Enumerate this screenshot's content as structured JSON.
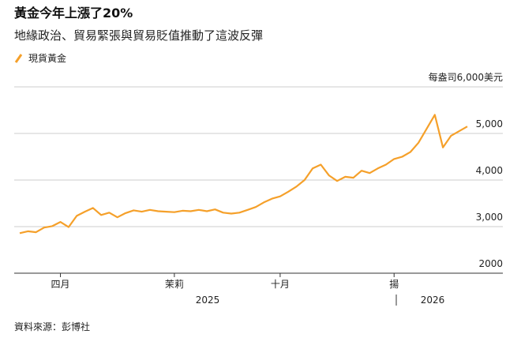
{
  "chart_data": {
    "type": "line",
    "title": "黃金今年上漲了20%",
    "subtitle": "地緣政治、貿易緊張與貿易貶值推動了這波反彈",
    "source": "資料來源：彭博社",
    "categories": [
      null,
      null,
      null,
      null,
      null,
      "四月",
      null,
      null,
      null,
      null,
      null,
      null,
      null,
      null,
      null,
      null,
      null,
      null,
      null,
      "茉莉",
      null,
      null,
      null,
      null,
      null,
      null,
      null,
      null,
      null,
      null,
      null,
      null,
      "十月",
      null,
      null,
      null,
      null,
      null,
      null,
      null,
      null,
      null,
      null,
      null,
      null,
      null,
      "揚",
      null,
      null,
      null,
      null,
      null,
      null,
      null,
      null,
      null
    ],
    "year_labels": [
      "2025",
      "2026"
    ],
    "series": [
      {
        "name": "現貨黃金",
        "color": "#f5a02a",
        "values": [
          2860,
          2900,
          2880,
          2980,
          3010,
          3100,
          2990,
          3230,
          3320,
          3400,
          3250,
          3300,
          3200,
          3290,
          3350,
          3320,
          3360,
          3330,
          3320,
          3310,
          3340,
          3330,
          3360,
          3330,
          3370,
          3300,
          3280,
          3300,
          3360,
          3420,
          3520,
          3600,
          3650,
          3750,
          3860,
          4000,
          4250,
          4330,
          4100,
          3980,
          4070,
          4050,
          4200,
          4150,
          4250,
          4330,
          4450,
          4500,
          4600,
          4800,
          5100,
          5400,
          4700,
          4950,
          5050,
          5150
        ]
      }
    ],
    "ylim": [
      2000,
      6000
    ],
    "yticks": [
      2000,
      {
        "value": 3000,
        "label": "3,000"
      },
      {
        "value": 4000,
        "label": "4,000"
      },
      {
        "value": 5000,
        "label": "5,000"
      },
      {
        "value": 6000,
        "label": "每盎司6,000美元"
      }
    ],
    "grid": true
  }
}
